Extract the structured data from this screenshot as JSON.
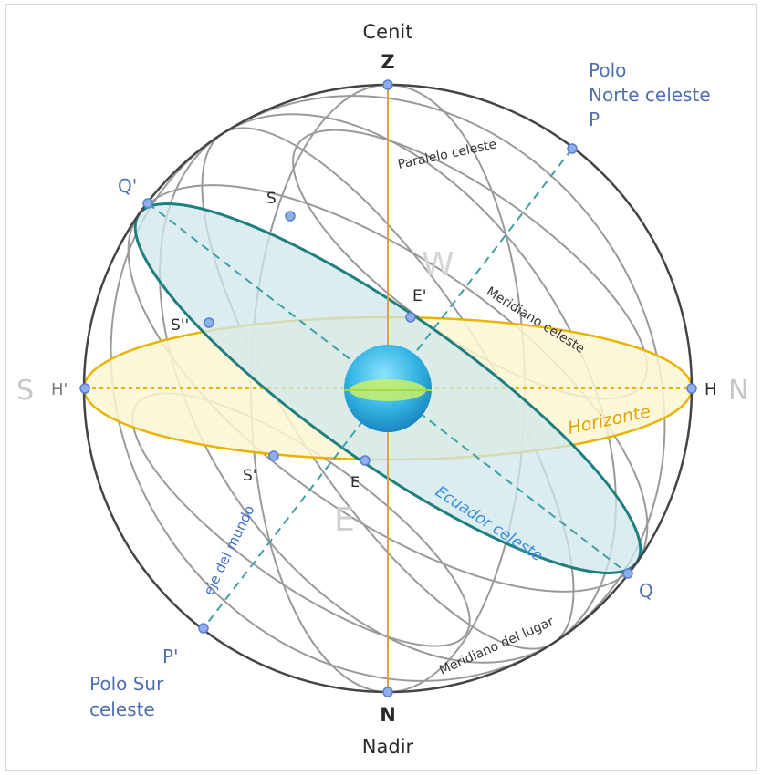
{
  "labels": {
    "cenit": "Cenit",
    "z": "Z",
    "nadir": "Nadir",
    "n": "N",
    "polo_norte_1": "Polo",
    "polo_norte_2": "Norte celeste",
    "p": "P",
    "polo_sur_1": "Polo Sur",
    "polo_sur_2": "celeste",
    "p_prime": "P'",
    "q_prime": "Q'",
    "q": "Q",
    "s": "S",
    "s_double": "S''",
    "s_prime": "S'",
    "e": "E",
    "e_prime": "E'",
    "h_prime": "H'",
    "h": "H",
    "card_s": "S",
    "card_n": "N",
    "card_w": "W",
    "card_e": "E"
  },
  "curve_labels": {
    "paralelo": "Paralelo celeste",
    "meridiano_celeste": "Meridiano celeste",
    "horizonte": "Horizonte",
    "ecuador": "Ecuador celeste",
    "eje": "eje del mundo",
    "meridiano_lugar": "Meridiano del lugar"
  },
  "colors": {
    "sphere": "#444444",
    "grid": "#9a9a9a",
    "horizon_fill": "#fdf6d3",
    "horizon_stroke": "#e8b400",
    "equator_fill": "#d9ecef",
    "equator_stroke": "#1f7f7f",
    "axis": "#3ea0a6",
    "vertical": "#d9a441",
    "point": "#6a8fd8",
    "earth": "#39b9e6"
  }
}
